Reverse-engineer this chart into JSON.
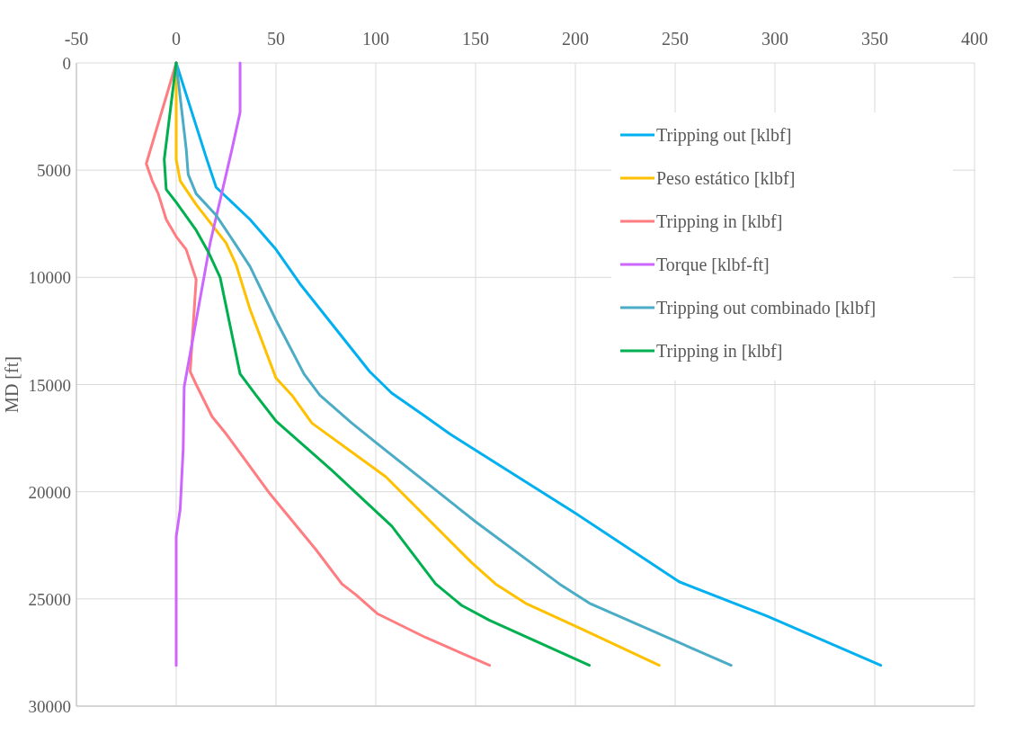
{
  "chart_data": {
    "type": "line",
    "ylabel": "MD [ft]",
    "xlim": [
      -50,
      400
    ],
    "xticks": [
      -50,
      0,
      50,
      100,
      150,
      200,
      250,
      300,
      350,
      400
    ],
    "ylim": [
      30000,
      0
    ],
    "yticks": [
      0,
      5000,
      10000,
      15000,
      20000,
      25000,
      30000
    ],
    "grid": true,
    "legend": "top right",
    "marker": "none",
    "line_style": "solid",
    "series": [
      {
        "name": "Tripping out [klbf]",
        "color": "#00b0f0",
        "x": [
          0,
          15,
          20,
          37,
          50,
          62,
          97,
          108,
          125,
          137,
          200,
          252,
          296,
          353
        ],
        "values": [
          0,
          4400,
          5800,
          7300,
          8700,
          10300,
          14400,
          15400,
          16500,
          17300,
          21000,
          24200,
          25800,
          28100
        ]
      },
      {
        "name": "Peso estático [klbf]",
        "color": "#ffc000",
        "x": [
          0,
          0,
          2,
          10,
          25,
          30,
          37,
          50,
          58,
          68,
          105,
          148,
          160,
          175,
          203,
          242
        ],
        "values": [
          0,
          4500,
          5500,
          6600,
          8400,
          9400,
          11500,
          14700,
          15500,
          16800,
          19300,
          23300,
          24300,
          25200,
          26400,
          28100
        ]
      },
      {
        "name": "Tripping in [klbf]",
        "color": "#ff7c80",
        "x": [
          0,
          -15,
          -12,
          -9,
          -5,
          0,
          5,
          10,
          7,
          10,
          18,
          25,
          47,
          70,
          83,
          90,
          101,
          125,
          157
        ],
        "values": [
          0,
          4700,
          5500,
          6100,
          7300,
          8100,
          8700,
          10100,
          14400,
          15000,
          16500,
          17300,
          20100,
          22700,
          24300,
          24800,
          25700,
          26800,
          28100
        ]
      },
      {
        "name": "Torque [klbf-ft]",
        "color": "#cc66ff",
        "x": [
          32,
          32,
          28,
          17,
          4,
          3.5,
          2,
          0,
          0
        ],
        "values": [
          0,
          2300,
          4000,
          8400,
          15100,
          18000,
          20800,
          22100,
          28100
        ]
      },
      {
        "name": "Tripping out combinado [klbf]",
        "color": "#4bacc6",
        "x": [
          0,
          5,
          6,
          10,
          20,
          30,
          37,
          50,
          64,
          72,
          88,
          100,
          150,
          192,
          207,
          278
        ],
        "values": [
          0,
          4000,
          5200,
          6100,
          7100,
          8500,
          9500,
          12000,
          14500,
          15500,
          16800,
          17700,
          21400,
          24300,
          25200,
          28100
        ]
      },
      {
        "name": "Tripping in [klbf]",
        "color": "#00b050",
        "x": [
          0,
          -6,
          -5,
          0,
          10,
          16,
          22,
          32,
          40,
          50,
          78,
          108,
          130,
          143,
          157,
          207
        ],
        "values": [
          0,
          4500,
          5900,
          6500,
          7800,
          8800,
          10000,
          14500,
          15500,
          16700,
          19000,
          21600,
          24300,
          25300,
          26000,
          28100
        ]
      }
    ]
  }
}
